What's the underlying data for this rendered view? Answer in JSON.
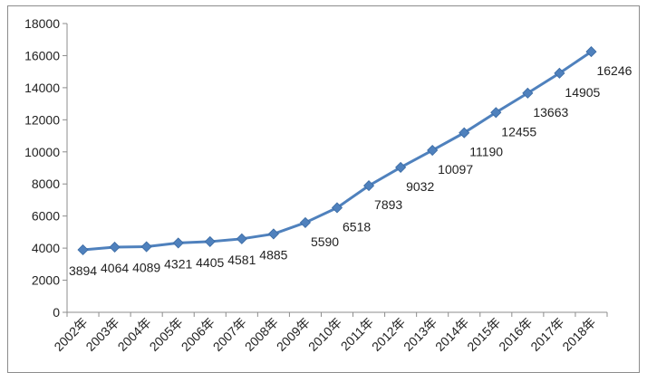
{
  "chart_data": {
    "type": "line",
    "title": "",
    "xlabel": "",
    "ylabel": "",
    "ylim": [
      0,
      18000
    ],
    "yticks": [
      0,
      2000,
      4000,
      6000,
      8000,
      10000,
      12000,
      14000,
      16000,
      18000
    ],
    "grid": false,
    "legend": "none",
    "line_color": "#4f81bd",
    "categories": [
      "2002年",
      "2003年",
      "2004年",
      "2005年",
      "2006年",
      "2007年",
      "2008年",
      "2009年",
      "2010年",
      "2011年",
      "2012年",
      "2013年",
      "2014年",
      "2015年",
      "2016年",
      "2017年",
      "2018年"
    ],
    "series": [
      {
        "values": [
          3894,
          4064,
          4089,
          4321,
          4405,
          4581,
          4885,
          5590,
          6518,
          7893,
          9032,
          10097,
          11190,
          12455,
          13663,
          14905,
          16246
        ]
      }
    ]
  }
}
